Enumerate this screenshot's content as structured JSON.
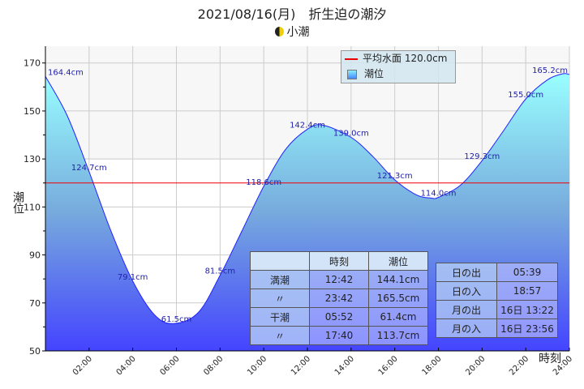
{
  "title": "2021/08/16(月)　折生迫の潮汐",
  "subtitle": "小潮",
  "moon_icon": "half-moon-icon",
  "legend": {
    "mean": "平均水面 120.0cm",
    "tide": "潮位",
    "mean_color": "#e00000"
  },
  "tide_table": {
    "headers": [
      "",
      "時刻",
      "潮位"
    ],
    "rows": [
      [
        "満潮",
        "12:42",
        "144.1cm"
      ],
      [
        "〃",
        "23:42",
        "165.5cm"
      ],
      [
        "干潮",
        "05:52",
        "61.4cm"
      ],
      [
        "〃",
        "17:40",
        "113.7cm"
      ]
    ]
  },
  "sun_table": {
    "rows": [
      [
        "日の出",
        "05:39"
      ],
      [
        "日の入",
        "18:57"
      ],
      [
        "月の出",
        "16日 13:22"
      ],
      [
        "月の入",
        "16日 23:56"
      ]
    ]
  },
  "chart_data": {
    "type": "area",
    "xlabel": "時刻",
    "ylabel": "潮位",
    "xlim": [
      0,
      24
    ],
    "ylim": [
      50,
      177
    ],
    "yticks": [
      50,
      70,
      90,
      110,
      130,
      150,
      170
    ],
    "xticks": [
      "02:00",
      "04:00",
      "06:00",
      "08:00",
      "10:00",
      "12:00",
      "14:00",
      "16:00",
      "18:00",
      "20:00",
      "22:00",
      "24:00"
    ],
    "mean_level": 120.0,
    "points": [
      [
        0,
        164.4
      ],
      [
        1,
        148
      ],
      [
        2,
        124.7
      ],
      [
        3,
        100
      ],
      [
        4,
        79.1
      ],
      [
        5,
        65
      ],
      [
        5.87,
        61.4
      ],
      [
        7,
        66
      ],
      [
        8,
        81.5
      ],
      [
        9,
        100
      ],
      [
        10,
        118.6
      ],
      [
        11,
        134
      ],
      [
        12,
        142.4
      ],
      [
        12.7,
        144.1
      ],
      [
        14,
        139.0
      ],
      [
        15,
        131
      ],
      [
        16,
        121.3
      ],
      [
        17,
        115
      ],
      [
        17.67,
        113.7
      ],
      [
        18,
        114.0
      ],
      [
        19,
        119
      ],
      [
        20,
        129.3
      ],
      [
        21,
        142
      ],
      [
        22,
        155.0
      ],
      [
        23,
        163
      ],
      [
        23.7,
        165.5
      ],
      [
        24,
        165.2
      ]
    ],
    "labels": [
      [
        "164.4cm",
        0,
        164.4
      ],
      [
        "124.7cm",
        2,
        124.7
      ],
      [
        "79.1cm",
        4,
        79.1
      ],
      [
        "61.5cm",
        6,
        61.5
      ],
      [
        "81.5cm",
        8,
        81.5
      ],
      [
        "118.6cm",
        10,
        118.6
      ],
      [
        "142.4cm",
        12,
        142.4
      ],
      [
        "139.0cm",
        14,
        139.0
      ],
      [
        "121.3cm",
        16,
        121.3
      ],
      [
        "114.0cm",
        18,
        114.0
      ],
      [
        "129.3cm",
        20,
        129.3
      ],
      [
        "155.0cm",
        22,
        155.0
      ],
      [
        "165.2cm",
        24,
        165.2
      ]
    ]
  }
}
